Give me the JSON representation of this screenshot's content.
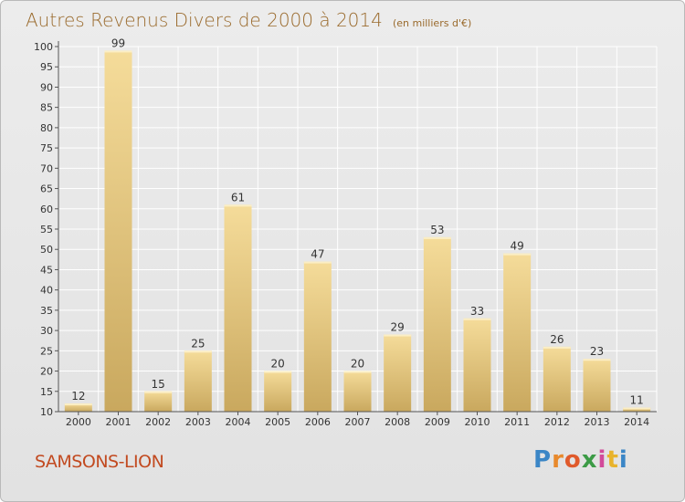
{
  "header": {
    "title": "Autres Revenus Divers de 2000 à 2014",
    "unit": "(en milliers d'€)"
  },
  "footer": {
    "commune": "SAMSONS-LION",
    "brand_letters": [
      "P",
      "r",
      "o",
      "x",
      "i",
      "t",
      "i"
    ],
    "brand_colors": [
      "#3b86c6",
      "#e8892c",
      "#e05a2b",
      "#3c9b46",
      "#d24a9a",
      "#e8b32c",
      "#3b86c6"
    ]
  },
  "colors": {
    "bar_top": "#f5dc9a",
    "bar_bottom": "#c9a85e",
    "axis": "#555555",
    "grid": "#ffffff",
    "title": "#9a6a2c"
  },
  "chart_data": {
    "type": "bar",
    "categories": [
      "2000",
      "2001",
      "2002",
      "2003",
      "2004",
      "2005",
      "2006",
      "2007",
      "2008",
      "2009",
      "2010",
      "2011",
      "2012",
      "2013",
      "2014"
    ],
    "values": [
      12,
      99,
      15,
      25,
      61,
      20,
      47,
      20,
      29,
      53,
      33,
      49,
      26,
      23,
      11
    ],
    "ylim": [
      10,
      100
    ],
    "yticks": [
      10,
      15,
      20,
      25,
      30,
      35,
      40,
      45,
      50,
      55,
      60,
      65,
      70,
      75,
      80,
      85,
      90,
      95,
      100
    ],
    "grid": true
  }
}
